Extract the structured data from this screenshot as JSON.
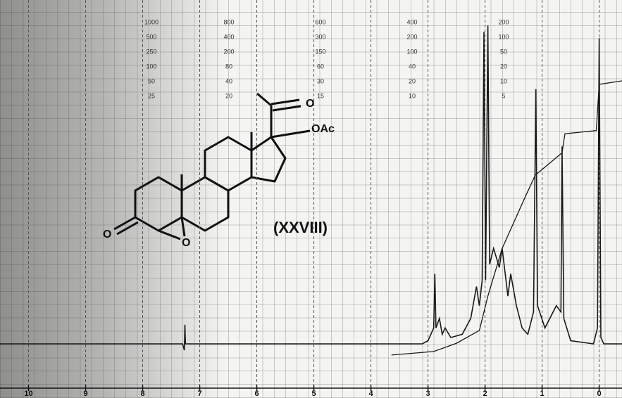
{
  "chart_data": {
    "type": "line",
    "xlim": [
      10.5,
      -0.4
    ],
    "xticks": [
      10,
      9,
      8,
      7,
      6,
      5,
      4,
      3,
      2,
      1,
      0
    ],
    "ylim": [
      -17,
      108
    ],
    "grid": true,
    "scale_labels": [
      [
        1000,
        500,
        250,
        100,
        50,
        25
      ],
      [
        800,
        400,
        200,
        80,
        40,
        20
      ],
      [
        600,
        300,
        150,
        60,
        30,
        15
      ],
      [
        400,
        200,
        100,
        40,
        20,
        10
      ],
      [
        200,
        100,
        50,
        20,
        10,
        5
      ]
    ],
    "series": [
      {
        "color": "#1a1a1a",
        "x": [
          10.5,
          7.3,
          7.27,
          7.26,
          7.25,
          3.1,
          3.0,
          2.9,
          2.88,
          2.86,
          2.8,
          2.75,
          2.7,
          2.6,
          2.4,
          2.25,
          2.15,
          2.1,
          2.05,
          2.02,
          1.99,
          1.95,
          1.92,
          1.85,
          1.75,
          1.7,
          1.6,
          1.55,
          1.45,
          1.35,
          1.25,
          1.15,
          1.11,
          1.08,
          0.95,
          0.75,
          0.67,
          0.65,
          0.62,
          0.5,
          0.1,
          0.03,
          0.0,
          -0.03,
          -0.08,
          -0.4
        ],
        "values": [
          0,
          0,
          -2,
          6,
          0,
          0,
          1,
          5,
          22,
          5,
          8,
          3,
          5,
          2,
          3,
          8,
          18,
          12,
          20,
          98,
          20,
          100,
          25,
          30,
          24,
          30,
          15,
          22,
          12,
          5,
          3,
          10,
          80,
          12,
          5,
          12,
          10,
          62,
          8,
          1,
          0,
          5,
          96,
          2,
          0,
          0
        ]
      },
      {
        "color": "#1a1a1a",
        "x": [
          3.64,
          2.9,
          2.5,
          2.1,
          1.95,
          1.7,
          1.5,
          1.3,
          1.12,
          1.05,
          0.65,
          0.6,
          0.05,
          0.0,
          -0.4
        ],
        "values": [
          -3.5,
          -2.4,
          0.2,
          4.2,
          15,
          30,
          38,
          46,
          53,
          54,
          60,
          66,
          67,
          81.5,
          82.6
        ]
      }
    ],
    "annotations": [
      "O",
      "OAc",
      "O",
      "O",
      "(XXVIII)"
    ]
  }
}
